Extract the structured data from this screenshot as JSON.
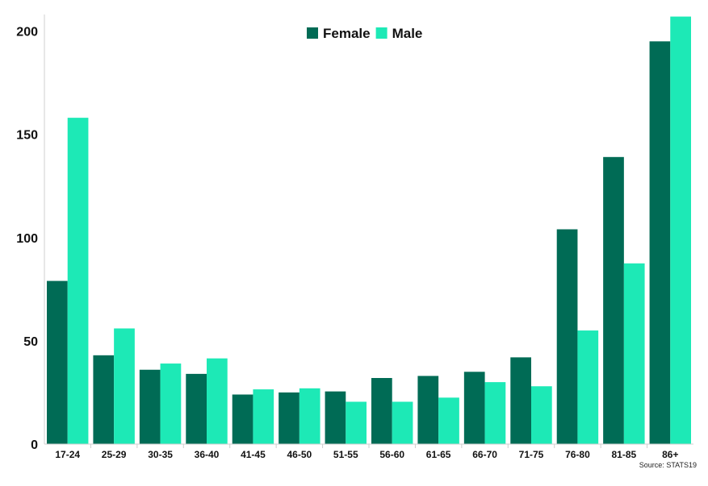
{
  "chart_data": {
    "type": "bar",
    "categories": [
      "17-24",
      "25-29",
      "30-35",
      "36-40",
      "41-45",
      "46-50",
      "51-55",
      "56-60",
      "61-65",
      "66-70",
      "71-75",
      "76-80",
      "81-85",
      "86+"
    ],
    "series": [
      {
        "name": "Female",
        "color": "#006b55",
        "values": [
          79,
          43,
          36,
          34,
          24,
          25,
          25.5,
          32,
          33,
          35,
          42,
          104,
          139,
          195
        ]
      },
      {
        "name": "Male",
        "color": "#1de9b6",
        "values": [
          158,
          56,
          39,
          41.5,
          26.5,
          27,
          20.5,
          20.5,
          22.5,
          30,
          28,
          55,
          87.5,
          207
        ]
      }
    ],
    "yticks": [
      "0",
      "50",
      "100",
      "150",
      "200"
    ],
    "ylim": [
      0,
      208
    ],
    "grid": false,
    "legend_position": "top-center"
  },
  "source": "Source: STATS19"
}
